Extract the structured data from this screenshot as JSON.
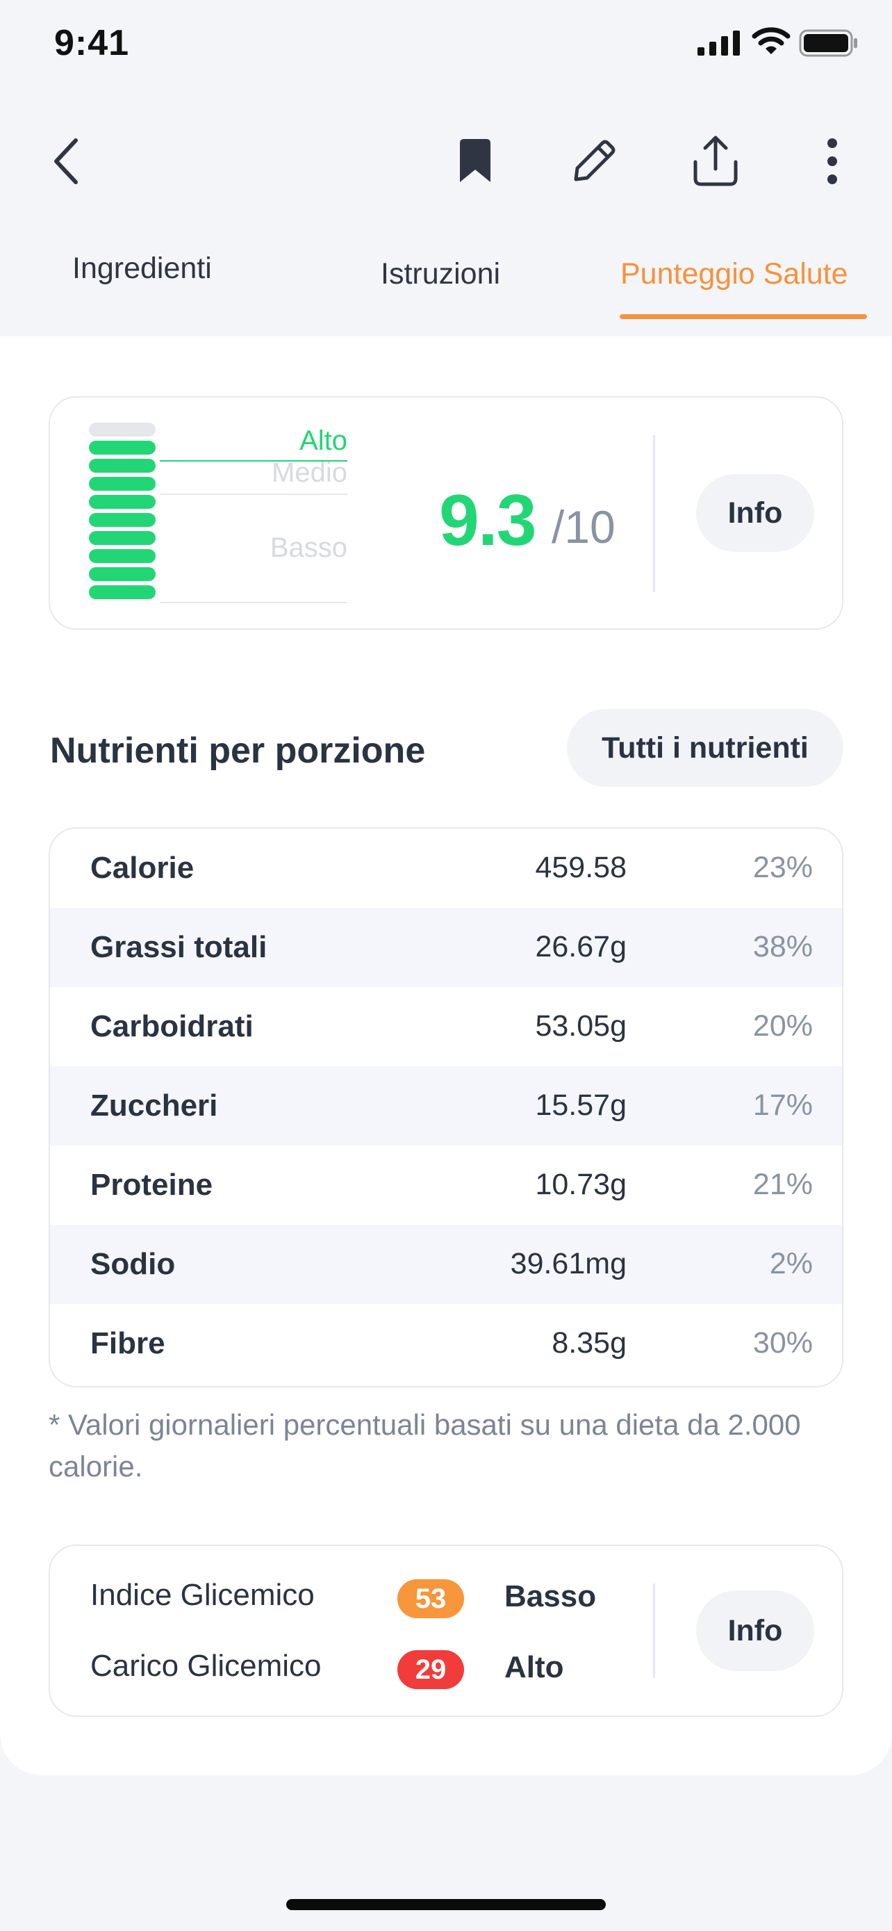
{
  "status_bar": {
    "time": "9:41"
  },
  "nav": {
    "icons": [
      "chevron-left-icon",
      "bookmark-icon",
      "pencil-icon",
      "share-icon",
      "more-vertical-icon"
    ]
  },
  "tabs": [
    {
      "label": "Ingredienti",
      "active": false
    },
    {
      "label": "Istruzioni",
      "active": false
    },
    {
      "label": "Punteggio Salute",
      "active": true
    }
  ],
  "score": {
    "value": "9.3",
    "max": "/10",
    "level_labels": {
      "high": "Alto",
      "medium": "Medio",
      "low": "Basso"
    },
    "active_level": "Alto",
    "meter_filled_segments": 9,
    "meter_total_segments": 10,
    "info_label": "Info",
    "color": "#22d676"
  },
  "nutrients": {
    "title": "Nutrienti per porzione",
    "all_button": "Tutti i nutrienti",
    "rows": [
      {
        "name": "Calorie",
        "value": "459.58",
        "pct": "23%"
      },
      {
        "name": "Grassi totali",
        "value": "26.67g",
        "pct": "38%"
      },
      {
        "name": "Carboidrati",
        "value": "53.05g",
        "pct": "20%"
      },
      {
        "name": "Zuccheri",
        "value": "15.57g",
        "pct": "17%"
      },
      {
        "name": "Proteine",
        "value": "10.73g",
        "pct": "21%"
      },
      {
        "name": "Sodio",
        "value": "39.61mg",
        "pct": "2%"
      },
      {
        "name": "Fibre",
        "value": "8.35g",
        "pct": "30%"
      }
    ],
    "footnote": "* Valori giornalieri percentuali basati su una dieta da 2.000 calorie."
  },
  "glycemic": {
    "index": {
      "label": "Indice Glicemico",
      "value": "53",
      "level": "Basso",
      "color": "#f7963a"
    },
    "load": {
      "label": "Carico Glicemico",
      "value": "29",
      "level": "Alto",
      "color": "#f23b3b"
    },
    "info_label": "Info"
  },
  "colors": {
    "accent": "#f7923a",
    "good": "#22d676",
    "text": "#2a3342",
    "muted": "#8a93a3"
  }
}
